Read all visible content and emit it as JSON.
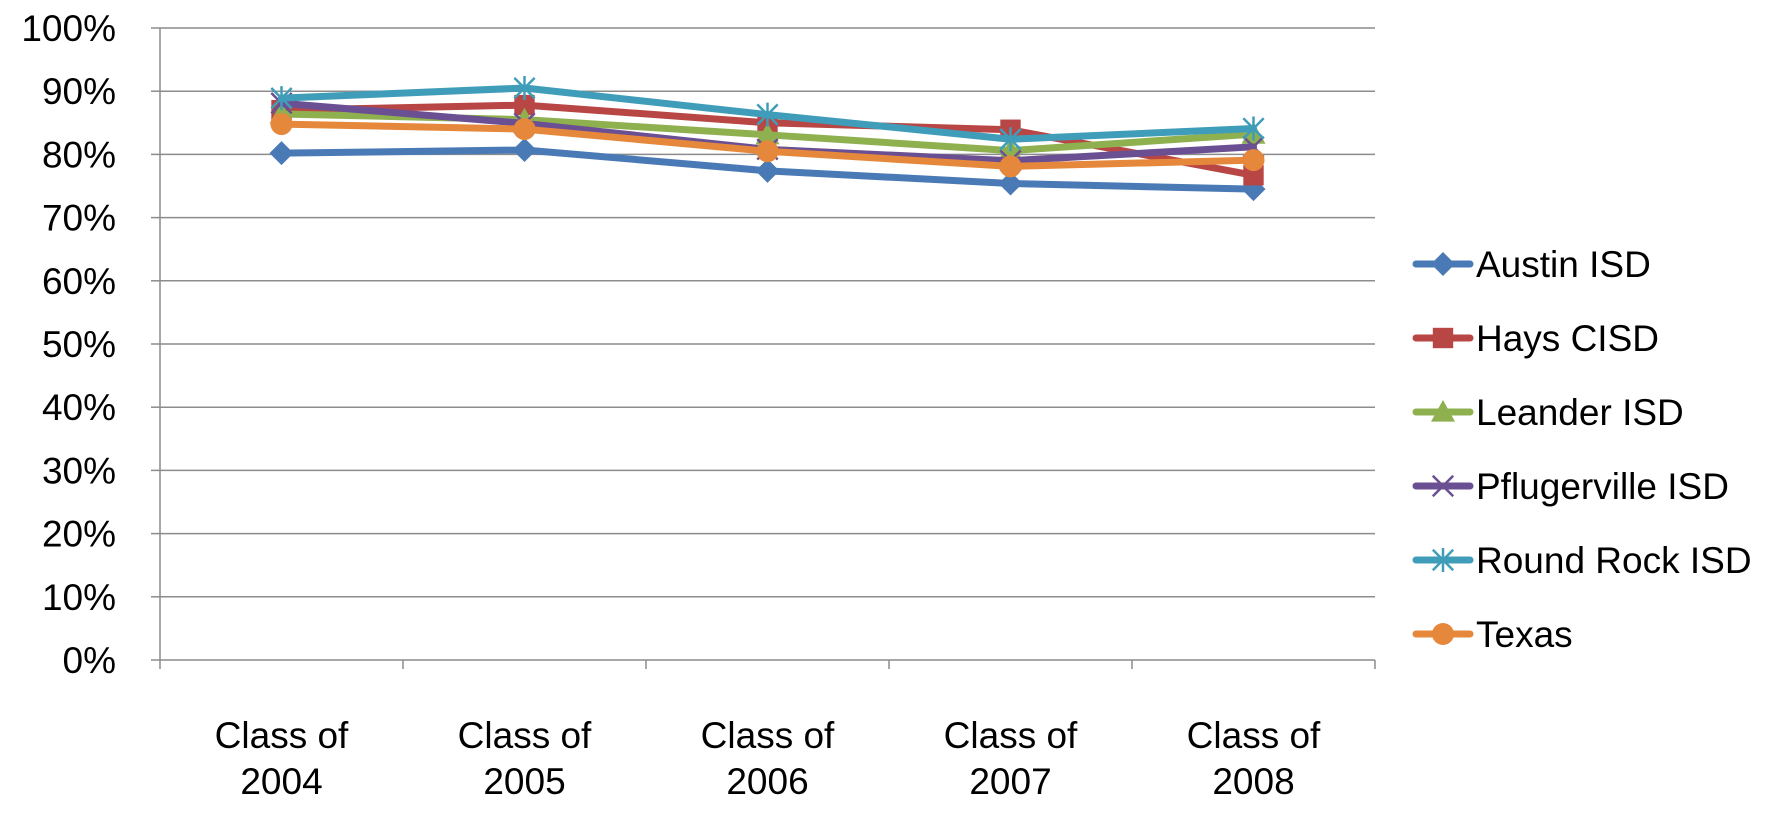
{
  "chart_data": {
    "type": "line",
    "title": "",
    "xlabel": "",
    "ylabel": "",
    "ylim": [
      0,
      100
    ],
    "y_ticks": [
      "0%",
      "10%",
      "20%",
      "30%",
      "40%",
      "50%",
      "60%",
      "70%",
      "80%",
      "90%",
      "100%"
    ],
    "grid": true,
    "legend_position": "right",
    "categories": [
      [
        "Class of",
        "2004"
      ],
      [
        "Class of",
        "2005"
      ],
      [
        "Class of",
        "2006"
      ],
      [
        "Class of",
        "2007"
      ],
      [
        "Class of",
        "2008"
      ]
    ],
    "series": [
      {
        "name": "Austin ISD",
        "color": "#4a7ab5",
        "marker": "diamond",
        "values": [
          80.2,
          80.7,
          77.4,
          75.4,
          74.5
        ]
      },
      {
        "name": "Hays CISD",
        "color": "#b84644",
        "marker": "square",
        "values": [
          87.0,
          87.8,
          85.0,
          83.9,
          76.7
        ]
      },
      {
        "name": "Leander ISD",
        "color": "#8eb04f",
        "marker": "triangle",
        "values": [
          86.4,
          85.5,
          83.1,
          80.6,
          83.2
        ]
      },
      {
        "name": "Pflugerville ISD",
        "color": "#6a4f92",
        "marker": "x",
        "values": [
          88.1,
          84.9,
          80.8,
          79.0,
          81.2
        ]
      },
      {
        "name": "Round Rock ISD",
        "color": "#3f9db9",
        "marker": "asterisk",
        "values": [
          88.9,
          90.5,
          86.3,
          82.4,
          84.1
        ]
      },
      {
        "name": "Texas",
        "color": "#e5883c",
        "marker": "circle",
        "values": [
          84.8,
          84.0,
          80.5,
          78.1,
          79.1
        ]
      }
    ]
  }
}
